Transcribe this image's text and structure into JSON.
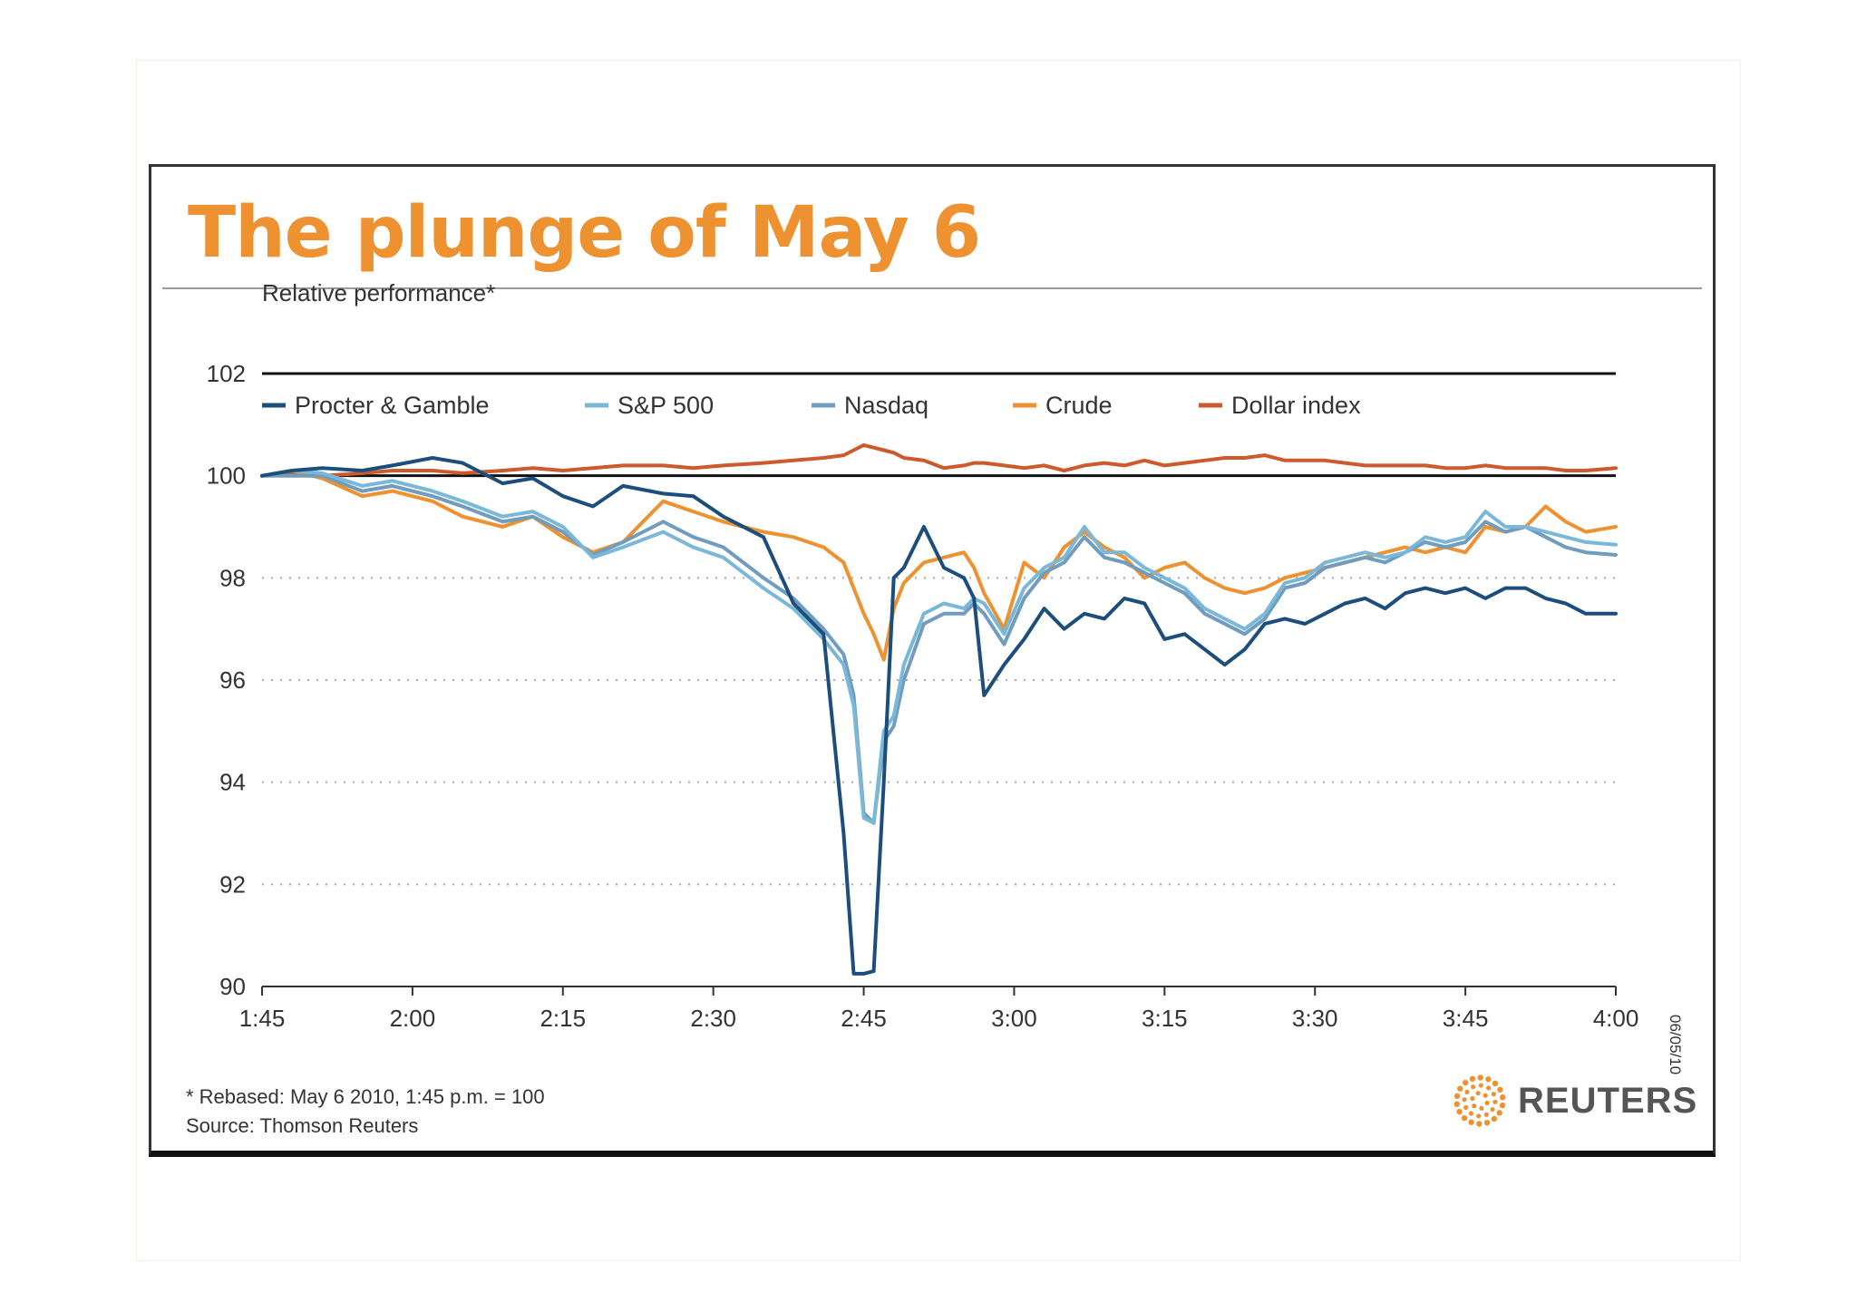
{
  "chart_data": {
    "type": "line",
    "title": "The plunge of May 6",
    "ylabel": "Relative performance*",
    "xlabel": "",
    "ylim": [
      90,
      102
    ],
    "yticks": [
      90,
      92,
      94,
      96,
      98,
      100,
      102
    ],
    "xticks": [
      "1:45",
      "2:00",
      "2:15",
      "2:30",
      "2:45",
      "3:00",
      "3:15",
      "3:30",
      "3:45",
      "4:00"
    ],
    "x_minutes": [
      0,
      3,
      6,
      10,
      13,
      17,
      20,
      24,
      27,
      30,
      33,
      36,
      40,
      43,
      46,
      50,
      53,
      56,
      58,
      59,
      60,
      61,
      62,
      63,
      64,
      66,
      68,
      70,
      71,
      72,
      74,
      76,
      78,
      80,
      82,
      84,
      86,
      88,
      90,
      92,
      94,
      96,
      98,
      100,
      102,
      104,
      106,
      108,
      110,
      112,
      114,
      116,
      118,
      120,
      122,
      124,
      126,
      128,
      130,
      132,
      135
    ],
    "grid": "dotted horizontal",
    "legend_position": "top",
    "series": [
      {
        "name": "Procter & Gamble",
        "color": "#1c4e7d",
        "values": [
          100.0,
          100.1,
          100.15,
          100.1,
          100.2,
          100.35,
          100.25,
          99.85,
          99.95,
          99.6,
          99.4,
          99.8,
          99.65,
          99.6,
          99.2,
          98.8,
          97.5,
          96.9,
          93.0,
          90.25,
          90.25,
          90.3,
          94.0,
          98.0,
          98.2,
          99.0,
          98.2,
          98.0,
          97.6,
          95.7,
          96.3,
          96.8,
          97.4,
          97.0,
          97.3,
          97.2,
          97.6,
          97.5,
          96.8,
          96.9,
          96.6,
          96.3,
          96.6,
          97.1,
          97.2,
          97.1,
          97.3,
          97.5,
          97.6,
          97.4,
          97.7,
          97.8,
          97.7,
          97.8,
          97.6,
          97.8,
          97.8,
          97.6,
          97.5,
          97.3,
          97.3
        ]
      },
      {
        "name": "S&P 500",
        "color": "#7ab8d9",
        "values": [
          100.0,
          100.1,
          100.05,
          99.8,
          99.9,
          99.7,
          99.5,
          99.2,
          99.3,
          99.0,
          98.4,
          98.6,
          98.9,
          98.6,
          98.4,
          97.8,
          97.4,
          96.8,
          96.3,
          95.5,
          93.3,
          93.2,
          95.0,
          95.3,
          96.3,
          97.3,
          97.5,
          97.4,
          97.6,
          97.5,
          96.9,
          97.8,
          98.2,
          98.4,
          99.0,
          98.5,
          98.5,
          98.2,
          98.0,
          97.8,
          97.4,
          97.2,
          97.0,
          97.3,
          97.9,
          98.0,
          98.3,
          98.4,
          98.5,
          98.4,
          98.5,
          98.8,
          98.7,
          98.8,
          99.3,
          99.0,
          99.0,
          98.9,
          98.8,
          98.7,
          98.65
        ]
      },
      {
        "name": "Nasdaq",
        "color": "#6f9cbf",
        "values": [
          100.0,
          100.0,
          100.0,
          99.7,
          99.8,
          99.6,
          99.4,
          99.1,
          99.2,
          98.9,
          98.45,
          98.7,
          99.1,
          98.8,
          98.6,
          98.0,
          97.6,
          97.0,
          96.5,
          95.7,
          93.4,
          93.2,
          94.8,
          95.1,
          96.0,
          97.1,
          97.3,
          97.3,
          97.5,
          97.3,
          96.7,
          97.6,
          98.1,
          98.3,
          98.8,
          98.4,
          98.3,
          98.1,
          97.9,
          97.7,
          97.3,
          97.1,
          96.9,
          97.2,
          97.8,
          97.9,
          98.2,
          98.3,
          98.4,
          98.3,
          98.5,
          98.7,
          98.6,
          98.7,
          99.1,
          98.9,
          99.0,
          98.8,
          98.6,
          98.5,
          98.45
        ]
      },
      {
        "name": "Crude",
        "color": "#ee9130",
        "values": [
          100.0,
          100.1,
          99.95,
          99.6,
          99.7,
          99.5,
          99.2,
          99.0,
          99.2,
          98.8,
          98.5,
          98.7,
          99.5,
          99.3,
          99.1,
          98.9,
          98.8,
          98.6,
          98.3,
          97.8,
          97.3,
          96.9,
          96.4,
          97.4,
          97.9,
          98.3,
          98.4,
          98.5,
          98.2,
          97.7,
          97.0,
          98.3,
          98.0,
          98.6,
          98.9,
          98.6,
          98.4,
          98.0,
          98.2,
          98.3,
          98.0,
          97.8,
          97.7,
          97.8,
          98.0,
          98.1,
          98.2,
          98.3,
          98.4,
          98.5,
          98.6,
          98.5,
          98.6,
          98.5,
          99.0,
          98.9,
          99.0,
          99.4,
          99.1,
          98.9,
          99.0
        ]
      },
      {
        "name": "Dollar index",
        "color": "#cd5a2c",
        "values": [
          100.0,
          100.05,
          100.0,
          100.05,
          100.1,
          100.1,
          100.05,
          100.1,
          100.15,
          100.1,
          100.15,
          100.2,
          100.2,
          100.15,
          100.2,
          100.25,
          100.3,
          100.35,
          100.4,
          100.5,
          100.6,
          100.55,
          100.5,
          100.45,
          100.35,
          100.3,
          100.15,
          100.2,
          100.25,
          100.25,
          100.2,
          100.15,
          100.2,
          100.1,
          100.2,
          100.25,
          100.2,
          100.3,
          100.2,
          100.25,
          100.3,
          100.35,
          100.35,
          100.4,
          100.3,
          100.3,
          100.3,
          100.25,
          100.2,
          100.2,
          100.2,
          100.2,
          100.15,
          100.15,
          100.2,
          100.15,
          100.15,
          100.15,
          100.1,
          100.1,
          100.15
        ]
      }
    ]
  },
  "footnote_lines": [
    "* Rebased: May 6 2010, 1:45 p.m. = 100",
    "Source: Thomson Reuters"
  ],
  "datestamp": "06/05/10",
  "brand": "REUTERS"
}
